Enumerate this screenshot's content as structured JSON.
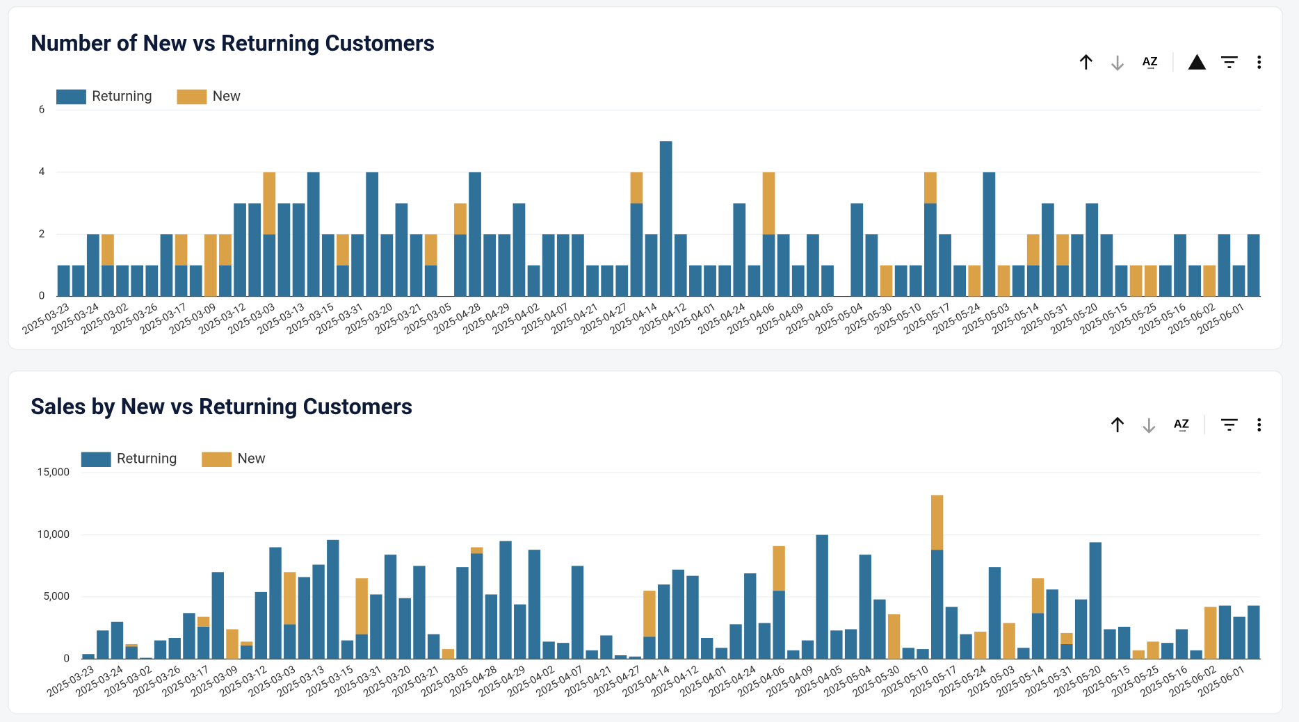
{
  "chart_data": [
    {
      "type": "bar",
      "stacked": true,
      "title": "Number of New vs Returning Customers",
      "categories": [
        "2025-03-23",
        null,
        "2025-03-24",
        null,
        "2025-03-02",
        null,
        "2025-03-26",
        null,
        "2025-03-17",
        null,
        "2025-03-09",
        null,
        "2025-03-12",
        null,
        "2025-03-03",
        null,
        "2025-03-13",
        null,
        "2025-03-15",
        null,
        "2025-03-31",
        null,
        "2025-03-20",
        null,
        "2025-03-21",
        null,
        "2025-03-05",
        null,
        "2025-04-28",
        null,
        "2025-04-29",
        null,
        "2025-04-02",
        null,
        "2025-04-07",
        null,
        "2025-04-21",
        null,
        "2025-04-27",
        null,
        "2025-04-14",
        null,
        "2025-04-12",
        null,
        "2025-04-01",
        null,
        "2025-04-24",
        null,
        "2025-04-06",
        null,
        "2025-04-09",
        null,
        "2025-04-05",
        null,
        "2025-05-04",
        null,
        "2025-05-30",
        null,
        "2025-05-10",
        null,
        "2025-05-17",
        null,
        "2025-05-24",
        null,
        "2025-05-03",
        null,
        "2025-05-14",
        null,
        "2025-05-31",
        null,
        "2025-05-20",
        null,
        "2025-05-15",
        null,
        "2025-05-25",
        null,
        "2025-05-16",
        null,
        "2025-06-02",
        null,
        "2025-06-01",
        null
      ],
      "series": [
        {
          "name": "Returning",
          "color": "#2f7199",
          "values": [
            1,
            1,
            2,
            1,
            1,
            1,
            1,
            2,
            1,
            1,
            0,
            1,
            3,
            3,
            2,
            3,
            3,
            4,
            2,
            1,
            2,
            4,
            2,
            3,
            2,
            1,
            0,
            2,
            4,
            2,
            2,
            3,
            1,
            2,
            2,
            2,
            1,
            1,
            1,
            3,
            2,
            5,
            2,
            1,
            1,
            1,
            3,
            1,
            2,
            2,
            1,
            2,
            1,
            0,
            3,
            2,
            0,
            1,
            1,
            3,
            2,
            1,
            0,
            4,
            0,
            1,
            1,
            3,
            1,
            2,
            3,
            2,
            1,
            0,
            0,
            1,
            2,
            1,
            0,
            2,
            1,
            2
          ]
        },
        {
          "name": "New",
          "color": "#dba146",
          "values": [
            0,
            0,
            0,
            1,
            0,
            0,
            0,
            0,
            1,
            0,
            2,
            1,
            0,
            0,
            2,
            0,
            0,
            0,
            0,
            1,
            0,
            0,
            0,
            0,
            0,
            1,
            0,
            1,
            0,
            0,
            0,
            0,
            0,
            0,
            0,
            0,
            0,
            0,
            0,
            1,
            0,
            0,
            0,
            0,
            0,
            0,
            0,
            0,
            2,
            0,
            0,
            0,
            0,
            0,
            0,
            0,
            1,
            0,
            0,
            1,
            0,
            0,
            1,
            0,
            1,
            0,
            1,
            0,
            1,
            0,
            0,
            0,
            0,
            1,
            1,
            0,
            0,
            0,
            1,
            0,
            0,
            0
          ]
        }
      ],
      "ylim": [
        0,
        6
      ],
      "yticks": [
        0,
        2,
        4,
        6
      ],
      "grid": true,
      "legend": "top-left"
    },
    {
      "type": "bar",
      "stacked": true,
      "title": "Sales by New vs Returning Customers",
      "categories": [
        "2025-03-23",
        null,
        "2025-03-24",
        null,
        "2025-03-02",
        null,
        "2025-03-26",
        null,
        "2025-03-17",
        null,
        "2025-03-09",
        null,
        "2025-03-12",
        null,
        "2025-03-03",
        null,
        "2025-03-13",
        null,
        "2025-03-15",
        null,
        "2025-03-31",
        null,
        "2025-03-20",
        null,
        "2025-03-21",
        null,
        "2025-03-05",
        null,
        "2025-04-28",
        null,
        "2025-04-29",
        null,
        "2025-04-02",
        null,
        "2025-04-07",
        null,
        "2025-04-21",
        null,
        "2025-04-27",
        null,
        "2025-04-14",
        null,
        "2025-04-12",
        null,
        "2025-04-01",
        null,
        "2025-04-24",
        null,
        "2025-04-06",
        null,
        "2025-04-09",
        null,
        "2025-04-05",
        null,
        "2025-05-04",
        null,
        "2025-05-30",
        null,
        "2025-05-10",
        null,
        "2025-05-17",
        null,
        "2025-05-24",
        null,
        "2025-05-03",
        null,
        "2025-05-14",
        null,
        "2025-05-31",
        null,
        "2025-05-20",
        null,
        "2025-05-15",
        null,
        "2025-05-25",
        null,
        "2025-05-16",
        null,
        "2025-06-02",
        null,
        "2025-06-01",
        null
      ],
      "series": [
        {
          "name": "Returning",
          "color": "#2f7199",
          "values": [
            400,
            2300,
            3000,
            1000,
            100,
            1500,
            1700,
            3700,
            2600,
            7000,
            0,
            1100,
            5400,
            9000,
            2800,
            6600,
            7600,
            9600,
            1500,
            2000,
            5200,
            8400,
            4900,
            7500,
            2000,
            0,
            7400,
            8500,
            5200,
            9500,
            4400,
            8800,
            1400,
            1300,
            7500,
            700,
            1900,
            300,
            200,
            1800,
            6000,
            7200,
            6700,
            1700,
            900,
            2800,
            6900,
            2900,
            5500,
            700,
            1500,
            10000,
            2300,
            2400,
            8400,
            4800,
            0,
            900,
            800,
            8800,
            4200,
            2000,
            0,
            7400,
            0,
            900,
            3700,
            5600,
            1200,
            4800,
            9400,
            2400,
            2600,
            0,
            0,
            1300,
            2400,
            700,
            0,
            4300,
            3400,
            4300
          ]
        },
        {
          "name": "New",
          "color": "#dba146",
          "values": [
            0,
            0,
            0,
            200,
            0,
            0,
            0,
            0,
            800,
            0,
            2400,
            300,
            0,
            0,
            4200,
            0,
            0,
            0,
            0,
            4500,
            0,
            0,
            0,
            0,
            0,
            800,
            0,
            500,
            0,
            0,
            0,
            0,
            0,
            0,
            0,
            0,
            0,
            0,
            0,
            3700,
            0,
            0,
            0,
            0,
            0,
            0,
            0,
            0,
            3600,
            0,
            0,
            0,
            0,
            0,
            0,
            0,
            3600,
            0,
            0,
            4400,
            0,
            0,
            2200,
            0,
            2900,
            0,
            2800,
            0,
            900,
            0,
            0,
            0,
            0,
            700,
            1400,
            0,
            0,
            0,
            4200,
            0,
            0,
            0
          ]
        }
      ],
      "ylim": [
        0,
        15000
      ],
      "yticks": [
        0,
        {
          "value": 5000,
          "label": "5,000"
        },
        {
          "value": 10000,
          "label": "10,000"
        },
        {
          "value": 15000,
          "label": "15,000"
        }
      ],
      "grid": true,
      "legend": "top-left"
    }
  ]
}
